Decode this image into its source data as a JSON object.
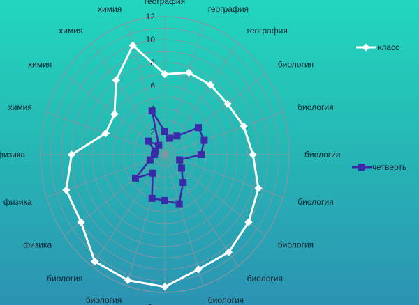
{
  "chart_data": {
    "type": "radar",
    "categories": [
      "география",
      "география",
      "география",
      "биология",
      "биология",
      "биология",
      "биология",
      "биология",
      "биология",
      "биология",
      "биология",
      "биология",
      "биология",
      "физика",
      "физика",
      "физика",
      "химия",
      "химия",
      "химия",
      "химия"
    ],
    "rlim": [
      0,
      12
    ],
    "ticks": [
      0,
      2,
      4,
      6,
      8,
      10,
      12
    ],
    "grid": true,
    "legend_position": "right",
    "series": [
      {
        "name": "класс",
        "color": "#ffffff",
        "marker": "diamond",
        "values": [
          7,
          7.5,
          7.5,
          7.5,
          8,
          8.5,
          9.5,
          10,
          10.5,
          10.5,
          11.5,
          11.5,
          11.5,
          10,
          10,
          9,
          6,
          6,
          8,
          10
        ]
      },
      {
        "name": "четверть",
        "color": "#3a2aa8",
        "marker": "square",
        "values": [
          2,
          1.5,
          2,
          4,
          4,
          3.5,
          1.5,
          2,
          3,
          4.5,
          4,
          4,
          2,
          3.5,
          1.5,
          1,
          1,
          2,
          1,
          4
        ]
      }
    ]
  }
}
